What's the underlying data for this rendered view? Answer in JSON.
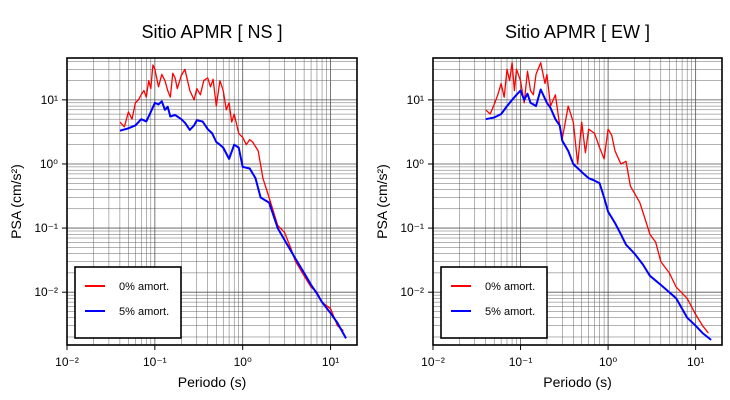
{
  "chart_data": [
    {
      "type": "line",
      "title": "Sitio APMR [ NS ]",
      "xlabel": "Periodo (s)",
      "ylabel": "PSA (cm/s²)",
      "xscale": "log",
      "yscale": "log",
      "xlim": [
        0.01,
        20
      ],
      "ylim": [
        0.0015,
        45
      ],
      "x_ticks": [
        "10⁻²",
        "10⁻¹",
        "10⁰",
        "10¹"
      ],
      "y_ticks": [
        "10⁻²",
        "10⁻¹",
        "10⁰",
        "10¹"
      ],
      "grid": true,
      "legend": "bottom-left",
      "series": [
        {
          "name": "0% amort.",
          "color": "#ff0000",
          "x": [
            0.04,
            0.045,
            0.05,
            0.055,
            0.06,
            0.065,
            0.07,
            0.075,
            0.08,
            0.085,
            0.09,
            0.095,
            0.1,
            0.11,
            0.12,
            0.13,
            0.14,
            0.15,
            0.16,
            0.17,
            0.18,
            0.2,
            0.22,
            0.25,
            0.28,
            0.3,
            0.33,
            0.36,
            0.4,
            0.43,
            0.46,
            0.5,
            0.55,
            0.6,
            0.65,
            0.7,
            0.75,
            0.8,
            0.9,
            1.0,
            1.1,
            1.2,
            1.3,
            1.5,
            1.7,
            2.0,
            2.5,
            3.0,
            3.5,
            4.0,
            5.0,
            6.0,
            7.0,
            8.0,
            10.0,
            12.0,
            14.0
          ],
          "values": [
            4.5,
            3.8,
            6.5,
            5.0,
            9.0,
            10.0,
            12.0,
            14.0,
            11.0,
            20.0,
            15.0,
            35.0,
            30.0,
            16.0,
            25.0,
            20.0,
            14.0,
            11.0,
            26.0,
            22.0,
            15.0,
            24.0,
            30.0,
            14.0,
            10.0,
            15.0,
            12.0,
            20.0,
            22.0,
            16.0,
            21.0,
            8.0,
            20.0,
            14.0,
            7.0,
            9.0,
            4.5,
            6.0,
            3.0,
            2.6,
            2.0,
            2.4,
            2.2,
            1.6,
            0.6,
            0.3,
            0.11,
            0.085,
            0.05,
            0.03,
            0.018,
            0.012,
            0.01,
            0.007,
            0.0055,
            0.003,
            0.0025
          ]
        },
        {
          "name": "5% amort.",
          "color": "#0000ff",
          "x": [
            0.04,
            0.05,
            0.06,
            0.07,
            0.08,
            0.09,
            0.1,
            0.11,
            0.12,
            0.13,
            0.14,
            0.15,
            0.17,
            0.2,
            0.22,
            0.25,
            0.28,
            0.3,
            0.35,
            0.4,
            0.45,
            0.5,
            0.55,
            0.6,
            0.7,
            0.8,
            0.9,
            1.0,
            1.2,
            1.4,
            1.6,
            2.0,
            2.5,
            3.0,
            4.0,
            5.0,
            6.0,
            7.0,
            8.0,
            10.0,
            12.0,
            15.0
          ],
          "values": [
            3.3,
            3.6,
            4.0,
            5.0,
            4.6,
            6.5,
            9.0,
            8.5,
            9.5,
            7.0,
            7.8,
            5.5,
            5.8,
            5.0,
            4.4,
            3.4,
            4.0,
            4.8,
            4.6,
            3.5,
            3.0,
            2.2,
            2.0,
            1.8,
            1.2,
            2.0,
            1.8,
            0.9,
            0.85,
            0.6,
            0.3,
            0.25,
            0.1,
            0.065,
            0.033,
            0.02,
            0.013,
            0.0095,
            0.007,
            0.0047,
            0.0033,
            0.0019
          ]
        }
      ]
    },
    {
      "type": "line",
      "title": "Sitio APMR [ EW ]",
      "xlabel": "Periodo (s)",
      "ylabel": "PSA (cm/s²)",
      "xscale": "log",
      "yscale": "log",
      "xlim": [
        0.01,
        20
      ],
      "ylim": [
        0.0015,
        45
      ],
      "x_ticks": [
        "10⁻²",
        "10⁻¹",
        "10⁰",
        "10¹"
      ],
      "y_ticks": [
        "10⁻²",
        "10⁻¹",
        "10⁰",
        "10¹"
      ],
      "grid": true,
      "legend": "bottom-left",
      "series": [
        {
          "name": "0% amort.",
          "color": "#ff0000",
          "x": [
            0.04,
            0.045,
            0.05,
            0.055,
            0.06,
            0.065,
            0.07,
            0.075,
            0.08,
            0.085,
            0.09,
            0.1,
            0.11,
            0.12,
            0.13,
            0.14,
            0.15,
            0.17,
            0.19,
            0.2,
            0.22,
            0.25,
            0.28,
            0.3,
            0.35,
            0.4,
            0.45,
            0.5,
            0.55,
            0.6,
            0.7,
            0.8,
            0.9,
            1.0,
            1.1,
            1.2,
            1.4,
            1.6,
            1.8,
            2.0,
            2.3,
            2.6,
            3.0,
            3.5,
            4.0,
            5.0,
            6.0,
            8.0,
            10.0,
            12.0,
            14.0
          ],
          "values": [
            7.0,
            6.0,
            8.5,
            12.0,
            18.0,
            11.0,
            30.0,
            20.0,
            38.0,
            14.0,
            30.0,
            20.0,
            9.0,
            28.0,
            14.0,
            12.0,
            25.0,
            38.0,
            18.0,
            25.0,
            8.0,
            12.0,
            4.0,
            2.5,
            8.0,
            4.5,
            1.0,
            4.5,
            1.5,
            3.5,
            3.0,
            1.8,
            1.2,
            3.5,
            2.8,
            1.6,
            1.0,
            1.1,
            0.45,
            0.35,
            0.25,
            0.15,
            0.08,
            0.06,
            0.03,
            0.02,
            0.012,
            0.008,
            0.0045,
            0.003,
            0.0023
          ]
        },
        {
          "name": "5% amort.",
          "color": "#0000ff",
          "x": [
            0.04,
            0.05,
            0.06,
            0.07,
            0.08,
            0.09,
            0.1,
            0.11,
            0.12,
            0.13,
            0.14,
            0.15,
            0.17,
            0.2,
            0.22,
            0.25,
            0.28,
            0.3,
            0.35,
            0.4,
            0.5,
            0.6,
            0.7,
            0.8,
            0.9,
            1.0,
            1.2,
            1.4,
            1.6,
            2.0,
            2.5,
            3.0,
            4.0,
            5.0,
            6.0,
            7.0,
            8.0,
            10.0,
            12.0,
            15.0
          ],
          "values": [
            5.0,
            5.3,
            6.0,
            8.0,
            10.0,
            12.0,
            14.0,
            10.0,
            12.5,
            9.0,
            8.5,
            8.0,
            14.5,
            9.0,
            7.5,
            5.0,
            4.0,
            2.3,
            1.6,
            1.0,
            0.75,
            0.6,
            0.55,
            0.5,
            0.3,
            0.18,
            0.12,
            0.08,
            0.055,
            0.04,
            0.027,
            0.018,
            0.013,
            0.01,
            0.008,
            0.0055,
            0.004,
            0.003,
            0.0023,
            0.0018
          ]
        }
      ]
    }
  ]
}
